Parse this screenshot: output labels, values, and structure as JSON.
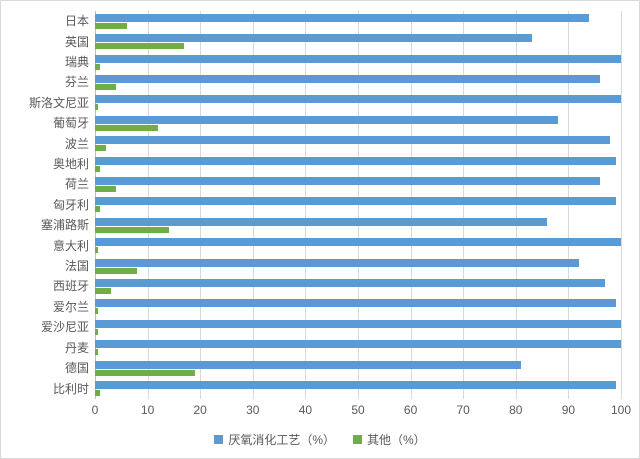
{
  "chart_data": {
    "type": "bar",
    "orientation": "horizontal",
    "title": "",
    "xlabel": "",
    "ylabel": "",
    "categories": [
      "日本",
      "英国",
      "瑞典",
      "芬兰",
      "斯洛文尼亚",
      "葡萄牙",
      "波兰",
      "奥地利",
      "荷兰",
      "匈牙利",
      "塞浦路斯",
      "意大利",
      "法国",
      "西班牙",
      "爱尔兰",
      "爱沙尼亚",
      "丹麦",
      "德国",
      "比利时"
    ],
    "series": [
      {
        "name": "厌氧消化工艺（%）",
        "color": "#5b9bd5",
        "values": [
          94,
          83,
          100,
          96,
          100,
          88,
          98,
          99,
          96,
          99,
          86,
          100,
          92,
          97,
          99,
          100,
          100,
          81,
          99
        ]
      },
      {
        "name": "其他（%）",
        "color": "#70ad47",
        "values": [
          6,
          17,
          1,
          4,
          0.5,
          12,
          2,
          1,
          4,
          1,
          14,
          0.5,
          8,
          3,
          0.5,
          0.5,
          0.5,
          19,
          1
        ]
      }
    ],
    "xlim": [
      0,
      100
    ],
    "x_ticks": [
      0,
      10,
      20,
      30,
      40,
      50,
      60,
      70,
      80,
      90,
      100
    ],
    "grid": "vertical",
    "legend_position": "bottom",
    "gridline_color": "#d9d9d9",
    "label_color": "#595959"
  }
}
